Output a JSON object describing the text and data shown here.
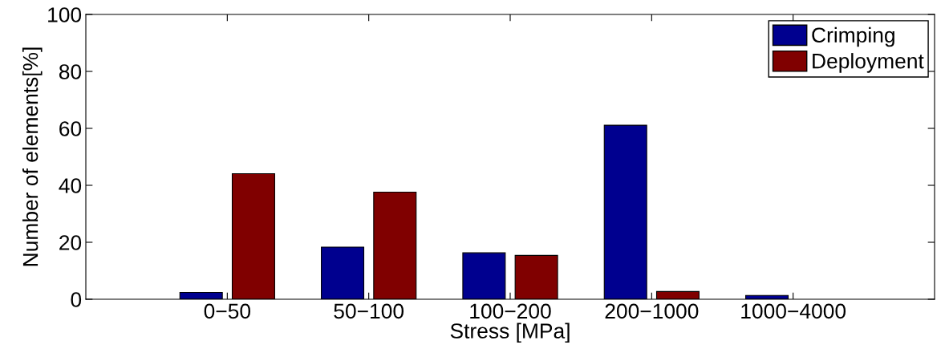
{
  "chart_data": {
    "type": "bar",
    "xlabel": "Stress [MPa]",
    "ylabel": "Number of elements[%]",
    "categories": [
      "0−50",
      "50−100",
      "100−200",
      "200−1000",
      "1000−4000"
    ],
    "series": [
      {
        "name": "Crimping",
        "color": "#00008f",
        "values": [
          2.4,
          18.3,
          16.3,
          61.1,
          1.35
        ]
      },
      {
        "name": "Deployment",
        "color": "#800000",
        "values": [
          44.1,
          37.6,
          15.4,
          2.7,
          null
        ]
      }
    ],
    "ylim": [
      0,
      100
    ],
    "yticks": [
      0,
      20,
      40,
      60,
      80,
      100
    ],
    "grid": false,
    "legend": "top right"
  }
}
